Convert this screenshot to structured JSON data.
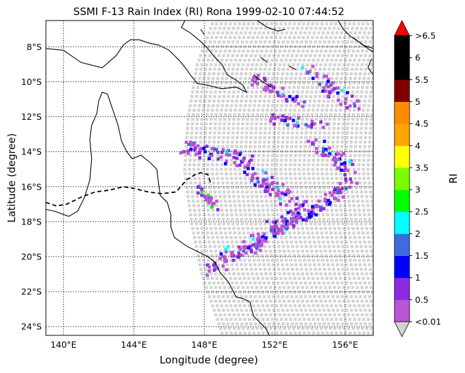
{
  "title": "SSMI F-13 Rain Index (RI) Rona 1999-02-10 07:44:52",
  "xlabel": "Longitude (degree)",
  "ylabel": "Latitude (degree)",
  "colorbar_label": "RI",
  "x_ticks": [
    {
      "value": 140,
      "label": "140°E"
    },
    {
      "value": 144,
      "label": "144°E"
    },
    {
      "value": 148,
      "label": "148°E"
    },
    {
      "value": 152,
      "label": "152°E"
    },
    {
      "value": 156,
      "label": "156°E"
    }
  ],
  "y_ticks": [
    {
      "value": -8,
      "label": "8°S"
    },
    {
      "value": -10,
      "label": "10°S"
    },
    {
      "value": -12,
      "label": "12°S"
    },
    {
      "value": -14,
      "label": "14°S"
    },
    {
      "value": -16,
      "label": "16°S"
    },
    {
      "value": -18,
      "label": "18°S"
    },
    {
      "value": -20,
      "label": "20°S"
    },
    {
      "value": -22,
      "label": "22°S"
    },
    {
      "value": -24,
      "label": "24°S"
    }
  ],
  "x_range": [
    139.0,
    157.6
  ],
  "y_range": [
    -24.5,
    -6.5
  ],
  "colorbar": {
    "ticks": [
      "<0.01",
      "0.5",
      "1",
      "1.5",
      "2",
      "2.5",
      "3",
      "3.5",
      "4",
      "4.5",
      "5",
      "5.5",
      "6",
      ">6.5"
    ],
    "bins_colors": [
      "#ba55d3",
      "#8a2be2",
      "#0000ff",
      "#4169e1",
      "#00ffff",
      "#00ff00",
      "#7cfc00",
      "#ffff00",
      "#ffa500",
      "#ff8c00",
      "#800000",
      "#000000",
      "#000000"
    ],
    "over_color": "#ff0000",
    "under_color": "#d3d3d3"
  },
  "swath_bg_color": "#d3d3d3",
  "track": [
    [
      139.0,
      -16.9
    ],
    [
      139.6,
      -17.1
    ],
    [
      140.2,
      -17.0
    ],
    [
      141.0,
      -16.6
    ],
    [
      141.8,
      -16.3
    ],
    [
      142.6,
      -16.2
    ],
    [
      143.4,
      -16.0
    ],
    [
      144.0,
      -16.1
    ],
    [
      144.8,
      -16.3
    ],
    [
      145.6,
      -16.4
    ],
    [
      146.4,
      -16.3
    ],
    [
      147.0,
      -15.6
    ],
    [
      147.5,
      -15.3
    ],
    [
      147.8,
      -15.2
    ],
    [
      148.2,
      -15.3
    ],
    [
      148.4,
      -15.9
    ]
  ],
  "coast": [
    [
      [
        139.0,
        -8.1
      ],
      [
        140.0,
        -8.2
      ],
      [
        141.0,
        -8.9
      ],
      [
        142.2,
        -9.2
      ],
      [
        143.0,
        -8.5
      ],
      [
        143.4,
        -7.9
      ],
      [
        143.8,
        -7.6
      ],
      [
        144.3,
        -7.6
      ],
      [
        144.9,
        -7.8
      ],
      [
        145.4,
        -7.9
      ],
      [
        146.0,
        -8.2
      ],
      [
        146.6,
        -8.8
      ],
      [
        147.0,
        -9.3
      ],
      [
        147.2,
        -9.6
      ],
      [
        147.6,
        -10.1
      ],
      [
        148.2,
        -10.2
      ],
      [
        149.0,
        -10.4
      ],
      [
        149.8,
        -10.3
      ],
      [
        150.4,
        -10.6
      ],
      [
        150.2,
        -10.2
      ],
      [
        149.8,
        -9.9
      ],
      [
        149.3,
        -9.6
      ],
      [
        149.0,
        -9.0
      ],
      [
        148.6,
        -8.6
      ],
      [
        148.2,
        -8.1
      ],
      [
        147.8,
        -7.7
      ],
      [
        147.2,
        -7.2
      ],
      [
        146.7,
        -6.9
      ],
      [
        146.9,
        -6.5
      ]
    ],
    [
      [
        139.0,
        -17.3
      ],
      [
        139.5,
        -17.4
      ],
      [
        140.3,
        -17.7
      ],
      [
        140.8,
        -17.4
      ],
      [
        141.2,
        -16.6
      ],
      [
        141.5,
        -15.6
      ],
      [
        141.6,
        -14.4
      ],
      [
        141.5,
        -13.3
      ],
      [
        141.6,
        -12.5
      ],
      [
        141.9,
        -11.8
      ],
      [
        142.0,
        -11.1
      ],
      [
        142.2,
        -10.6
      ],
      [
        142.5,
        -10.7
      ],
      [
        142.7,
        -11.3
      ],
      [
        142.9,
        -11.9
      ],
      [
        143.1,
        -12.5
      ],
      [
        143.3,
        -13.4
      ],
      [
        143.6,
        -14.0
      ],
      [
        143.9,
        -14.4
      ],
      [
        144.4,
        -14.2
      ],
      [
        144.9,
        -14.6
      ],
      [
        145.3,
        -15.0
      ],
      [
        145.4,
        -15.8
      ],
      [
        145.5,
        -16.5
      ],
      [
        145.9,
        -16.9
      ],
      [
        146.1,
        -17.6
      ],
      [
        146.1,
        -18.3
      ],
      [
        146.3,
        -18.9
      ],
      [
        147.0,
        -19.4
      ],
      [
        147.6,
        -19.7
      ],
      [
        148.2,
        -20.0
      ],
      [
        148.6,
        -20.3
      ],
      [
        148.9,
        -20.9
      ],
      [
        149.4,
        -21.5
      ],
      [
        149.8,
        -22.3
      ],
      [
        150.2,
        -22.4
      ],
      [
        150.6,
        -22.6
      ],
      [
        150.8,
        -23.4
      ],
      [
        151.2,
        -23.8
      ],
      [
        151.5,
        -24.1
      ],
      [
        151.7,
        -24.5
      ]
    ],
    [
      [
        151.0,
        -6.5
      ],
      [
        151.6,
        -6.9
      ],
      [
        152.2,
        -7.1
      ],
      [
        152.6,
        -7.0
      ]
    ],
    [
      [
        155.6,
        -6.5
      ],
      [
        155.9,
        -7.0
      ],
      [
        156.3,
        -7.4
      ],
      [
        156.9,
        -7.8
      ],
      [
        157.3,
        -8.1
      ],
      [
        157.6,
        -8.3
      ]
    ],
    [
      [
        156.5,
        -7.5
      ],
      [
        157.0,
        -7.9
      ],
      [
        157.6,
        -8.1
      ]
    ],
    [
      [
        157.5,
        -8.7
      ],
      [
        157.3,
        -9.2
      ],
      [
        157.6,
        -9.6
      ]
    ],
    [
      [
        150.8,
        -9.6
      ],
      [
        151.3,
        -10.0
      ],
      [
        151.8,
        -10.3
      ]
    ],
    [
      [
        151.2,
        -8.6
      ],
      [
        151.6,
        -8.9
      ]
    ],
    [
      [
        152.8,
        -9.1
      ],
      [
        153.2,
        -9.3
      ]
    ],
    [
      [
        147.8,
        -7.0
      ],
      [
        148.0,
        -7.3
      ]
    ]
  ],
  "swath": {
    "lon_top": [
      148.4,
      157.6
    ],
    "lon_bottom": [
      149.0,
      157.6
    ],
    "left_edge": [
      [
        148.4,
        -6.5
      ],
      [
        147.5,
        -9
      ],
      [
        147.0,
        -12
      ],
      [
        146.8,
        -15
      ],
      [
        147.2,
        -18
      ],
      [
        147.8,
        -21
      ],
      [
        149.0,
        -24.5
      ]
    ]
  },
  "rain_bands": [
    {
      "from": [
        148.2,
        -20.7
      ],
      "to": [
        156.5,
        -15.3
      ],
      "width": 0.9,
      "n": 140
    },
    {
      "from": [
        149.5,
        -20.0
      ],
      "to": [
        155.7,
        -16.3
      ],
      "width": 0.5,
      "n": 80
    },
    {
      "from": [
        146.8,
        -13.6
      ],
      "to": [
        150.5,
        -14.5
      ],
      "width": 0.8,
      "n": 70
    },
    {
      "from": [
        150.6,
        -15.0
      ],
      "to": [
        152.8,
        -16.6
      ],
      "width": 0.9,
      "n": 60
    },
    {
      "from": [
        154.0,
        -13.5
      ],
      "to": [
        156.2,
        -14.8
      ],
      "width": 0.9,
      "n": 45
    },
    {
      "from": [
        150.8,
        -9.8
      ],
      "to": [
        153.5,
        -11.2
      ],
      "width": 0.6,
      "n": 40
    },
    {
      "from": [
        153.8,
        -9.4
      ],
      "to": [
        156.5,
        -11.2
      ],
      "width": 0.9,
      "n": 45
    },
    {
      "from": [
        151.5,
        -12.0
      ],
      "to": [
        155.0,
        -12.5
      ],
      "width": 0.5,
      "n": 30
    },
    {
      "from": [
        147.4,
        -15.9
      ],
      "to": [
        148.8,
        -17.3
      ],
      "width": 0.5,
      "n": 25
    }
  ]
}
